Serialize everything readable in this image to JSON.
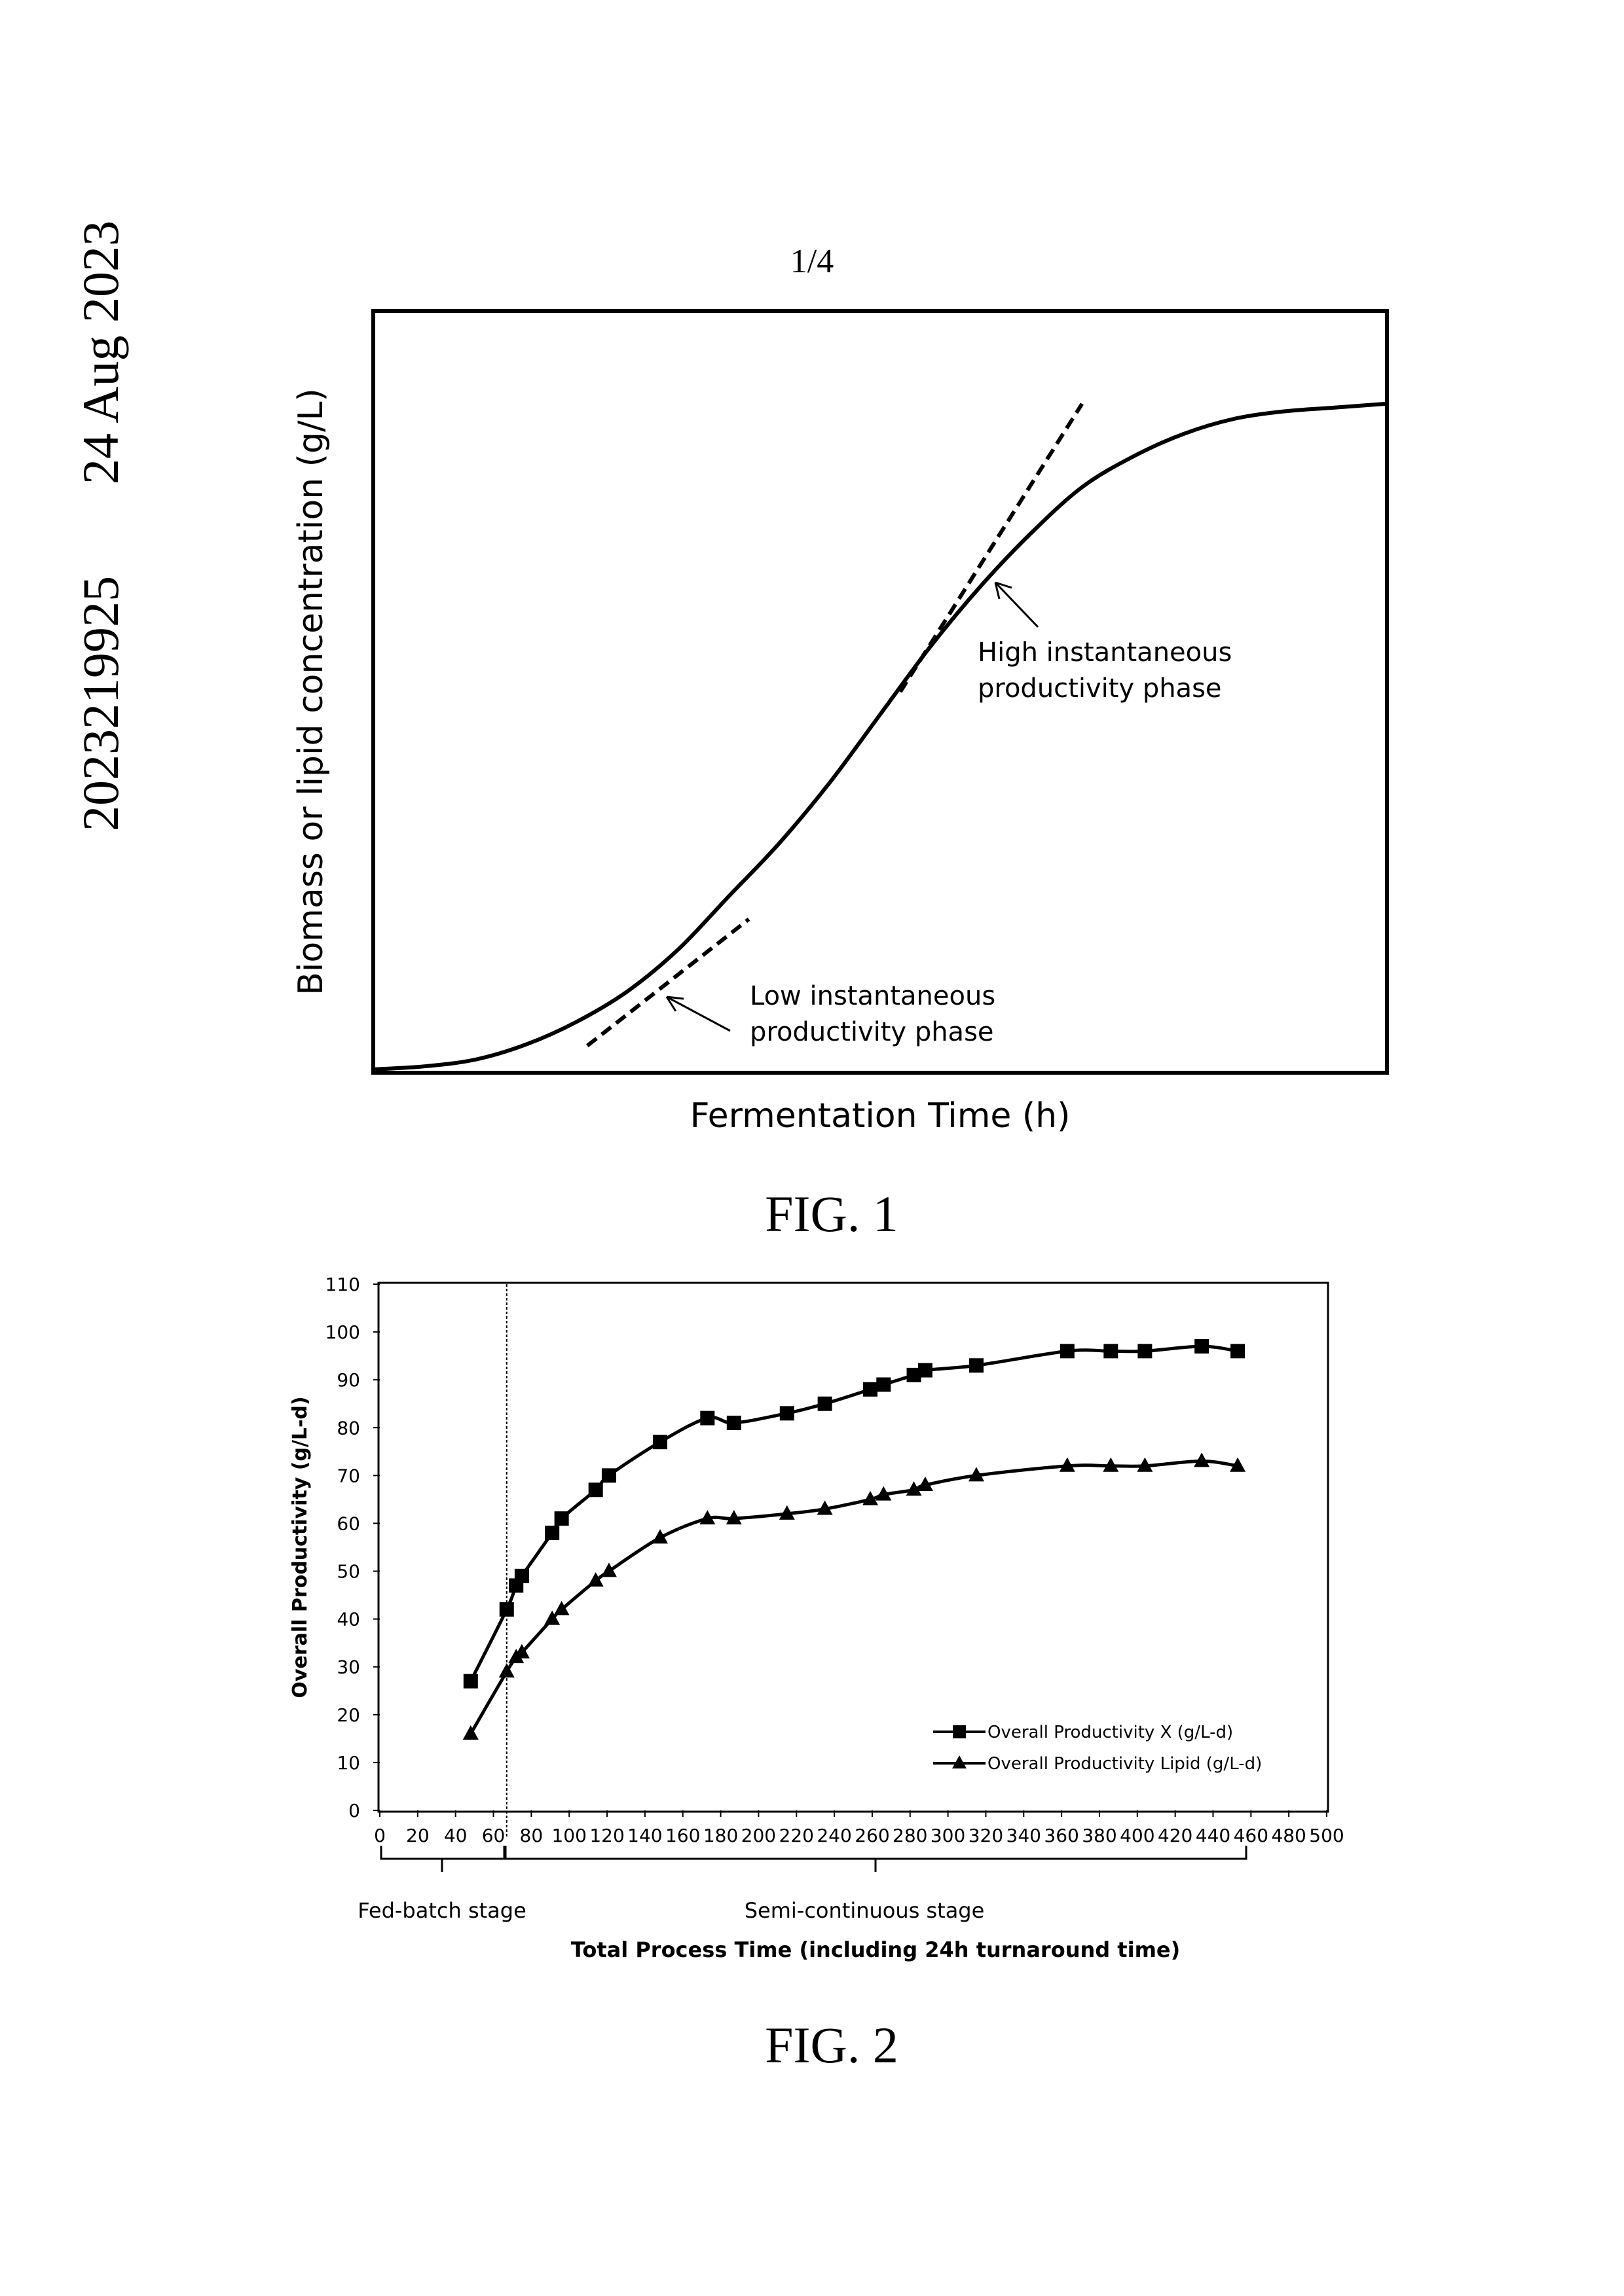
{
  "side_text": {
    "number": "2023219925",
    "date": "24 Aug 2023"
  },
  "page_number": "1/4",
  "fig1": {
    "caption": "FIG. 1",
    "xlabel": "Fermentation Time (h)",
    "ylabel": "Biomass or lipid concentration (g/L)",
    "annotations": {
      "high_line1": "High instantaneous",
      "high_line2": "productivity phase",
      "low_line1": "Low instantaneous",
      "low_line2": "productivity phase"
    }
  },
  "fig2": {
    "caption": "FIG. 2",
    "stage_fed": "Fed-batch stage",
    "stage_semi": "Semi-continuous stage"
  },
  "chart_data": [
    {
      "type": "line",
      "xlabel": "Fermentation Time (h)",
      "ylabel": "Biomass or lipid concentration (g/L)",
      "grid": false,
      "x": [
        0,
        5,
        10,
        15,
        20,
        25,
        30,
        35,
        40,
        45,
        50,
        55,
        60,
        65,
        70,
        75,
        80,
        85,
        90,
        95,
        100
      ],
      "series": [
        {
          "values": [
            0.2,
            0.6,
            1.5,
            3.5,
            6.5,
            10.5,
            16,
            23,
            30,
            38,
            47,
            56,
            64,
            71,
            77,
            81,
            84,
            86,
            87,
            87.5,
            88
          ]
        }
      ],
      "tangent_lines": [
        {
          "x": [
            21,
            37
          ],
          "y": [
            3.3,
            20
          ]
        },
        {
          "x": [
            52,
            70
          ],
          "y": [
            50,
            88
          ]
        }
      ],
      "xlim": [
        0,
        100
      ],
      "ylim": [
        0,
        100
      ]
    },
    {
      "type": "line",
      "xlabel": "Total Process Time (including 24h turnaround time)",
      "ylabel": "Overall Productivity (g/L-d)",
      "xlim": [
        0,
        500
      ],
      "ylim": [
        0,
        110
      ],
      "xticks": [
        0,
        20,
        40,
        60,
        80,
        100,
        120,
        140,
        160,
        180,
        200,
        220,
        240,
        260,
        280,
        300,
        320,
        340,
        360,
        380,
        400,
        420,
        440,
        460,
        480,
        500
      ],
      "yticks": [
        0,
        10,
        20,
        30,
        40,
        50,
        60,
        70,
        80,
        90,
        100,
        110
      ],
      "vertical_line_x": 67,
      "legend_position": "lower-right",
      "grid": false,
      "series": [
        {
          "name": "Overall Productivity X (g/L-d)",
          "marker": "square",
          "x": [
            48,
            67,
            72,
            75,
            91,
            96,
            114,
            121,
            148,
            173,
            187,
            215,
            235,
            259,
            266,
            282,
            288,
            315,
            363,
            386,
            404,
            434,
            453
          ],
          "y": [
            27,
            42,
            47,
            49,
            58,
            61,
            67,
            70,
            77,
            82,
            81,
            83,
            85,
            88,
            89,
            91,
            92,
            93,
            96,
            96,
            96,
            97,
            96
          ]
        },
        {
          "name": "Overall Productivity Lipid (g/L-d)",
          "marker": "triangle",
          "x": [
            48,
            67,
            72,
            75,
            91,
            96,
            114,
            121,
            148,
            173,
            187,
            215,
            235,
            259,
            266,
            282,
            288,
            315,
            363,
            386,
            404,
            434,
            453
          ],
          "y": [
            16,
            29,
            32,
            33,
            40,
            42,
            48,
            50,
            57,
            61,
            61,
            62,
            63,
            65,
            66,
            67,
            68,
            70,
            72,
            72,
            72,
            73,
            72
          ]
        }
      ]
    }
  ]
}
